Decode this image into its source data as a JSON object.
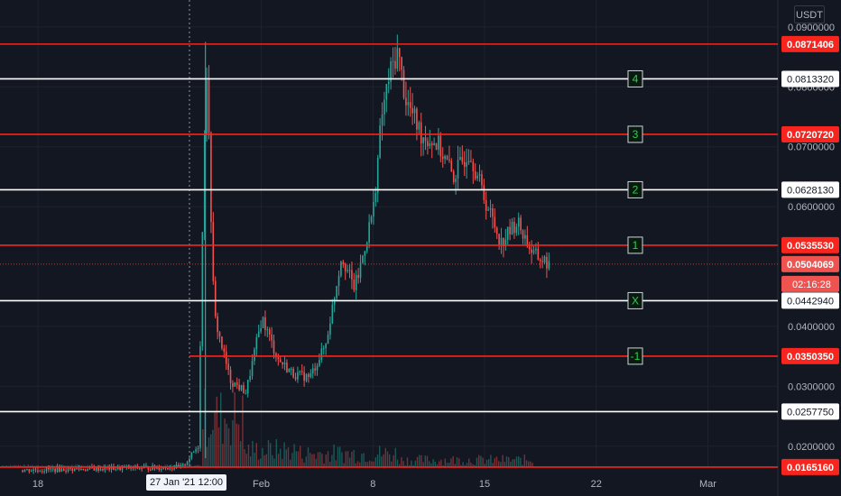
{
  "header": {
    "currency": "USDT"
  },
  "crosshair": {
    "date_label": "27 Jan '21   12:00"
  },
  "chart_data": {
    "type": "candlestick",
    "title": "",
    "ylim": [
      0.0165,
      0.0945
    ],
    "y_ticks": [
      "0.0900000",
      "0.0800000",
      "0.0700000",
      "0.0600000",
      "0.0400000",
      "0.0300000",
      "0.0200000"
    ],
    "x_ticks": [
      "18",
      "Feb",
      "8",
      "15",
      "22",
      "Mar"
    ],
    "last_price": "0.0504069",
    "countdown": "02:16:28",
    "horizontal_levels": [
      {
        "value": 0.0871406,
        "label": "0.0871406",
        "color": "#f7251d"
      },
      {
        "value": 0.081332,
        "label": "0.0813320",
        "color": "#ffffff"
      },
      {
        "value": 0.072072,
        "label": "0.0720720",
        "color": "#f7251d"
      },
      {
        "value": 0.062813,
        "label": "0.0628130",
        "color": "#ffffff"
      },
      {
        "value": 0.053553,
        "label": "0.0535530",
        "color": "#f7251d"
      },
      {
        "value": 0.044294,
        "label": "0.0442940",
        "color": "#ffffff"
      },
      {
        "value": 0.035035,
        "label": "0.0350350",
        "color": "#f7251d"
      },
      {
        "value": 0.025775,
        "label": "0.0257750",
        "color": "#ffffff"
      },
      {
        "value": 0.016516,
        "label": "0.0165160",
        "color": "#f7251d"
      }
    ],
    "level_markers": [
      {
        "label": "4",
        "value": 0.081332
      },
      {
        "label": "3",
        "value": 0.072072
      },
      {
        "label": "2",
        "value": 0.062813
      },
      {
        "label": "1",
        "value": 0.053553
      },
      {
        "label": "X",
        "value": 0.044294
      },
      {
        "label": "-1",
        "value": 0.035035
      }
    ],
    "price_path": [
      [
        "2021-01-17",
        0.016
      ],
      [
        "2021-01-27",
        0.0165
      ],
      [
        "2021-01-28",
        0.02
      ],
      [
        "2021-01-28T12",
        0.0862
      ],
      [
        "2021-01-29",
        0.042
      ],
      [
        "2021-01-30",
        0.031
      ],
      [
        "2021-01-31",
        0.029
      ],
      [
        "2021-02-01",
        0.0415
      ],
      [
        "2021-02-02",
        0.0345
      ],
      [
        "2021-02-03",
        0.032
      ],
      [
        "2021-02-04",
        0.0315
      ],
      [
        "2021-02-05",
        0.037
      ],
      [
        "2021-02-06",
        0.052
      ],
      [
        "2021-02-06T18",
        0.0465
      ],
      [
        "2021-02-07",
        0.048
      ],
      [
        "2021-02-08",
        0.06
      ],
      [
        "2021-02-08T12",
        0.075
      ],
      [
        "2021-02-09",
        0.082
      ],
      [
        "2021-02-09T12",
        0.086
      ],
      [
        "2021-02-10",
        0.078
      ],
      [
        "2021-02-11",
        0.072
      ],
      [
        "2021-02-12",
        0.0705
      ],
      [
        "2021-02-13",
        0.065
      ],
      [
        "2021-02-14",
        0.0695
      ],
      [
        "2021-02-15",
        0.061
      ],
      [
        "2021-02-16",
        0.054
      ],
      [
        "2021-02-17",
        0.0575
      ],
      [
        "2021-02-18",
        0.052
      ],
      [
        "2021-02-19",
        0.0504
      ]
    ],
    "colors": {
      "up": "#26a69a",
      "down": "#ef5350",
      "background": "#131722"
    }
  }
}
